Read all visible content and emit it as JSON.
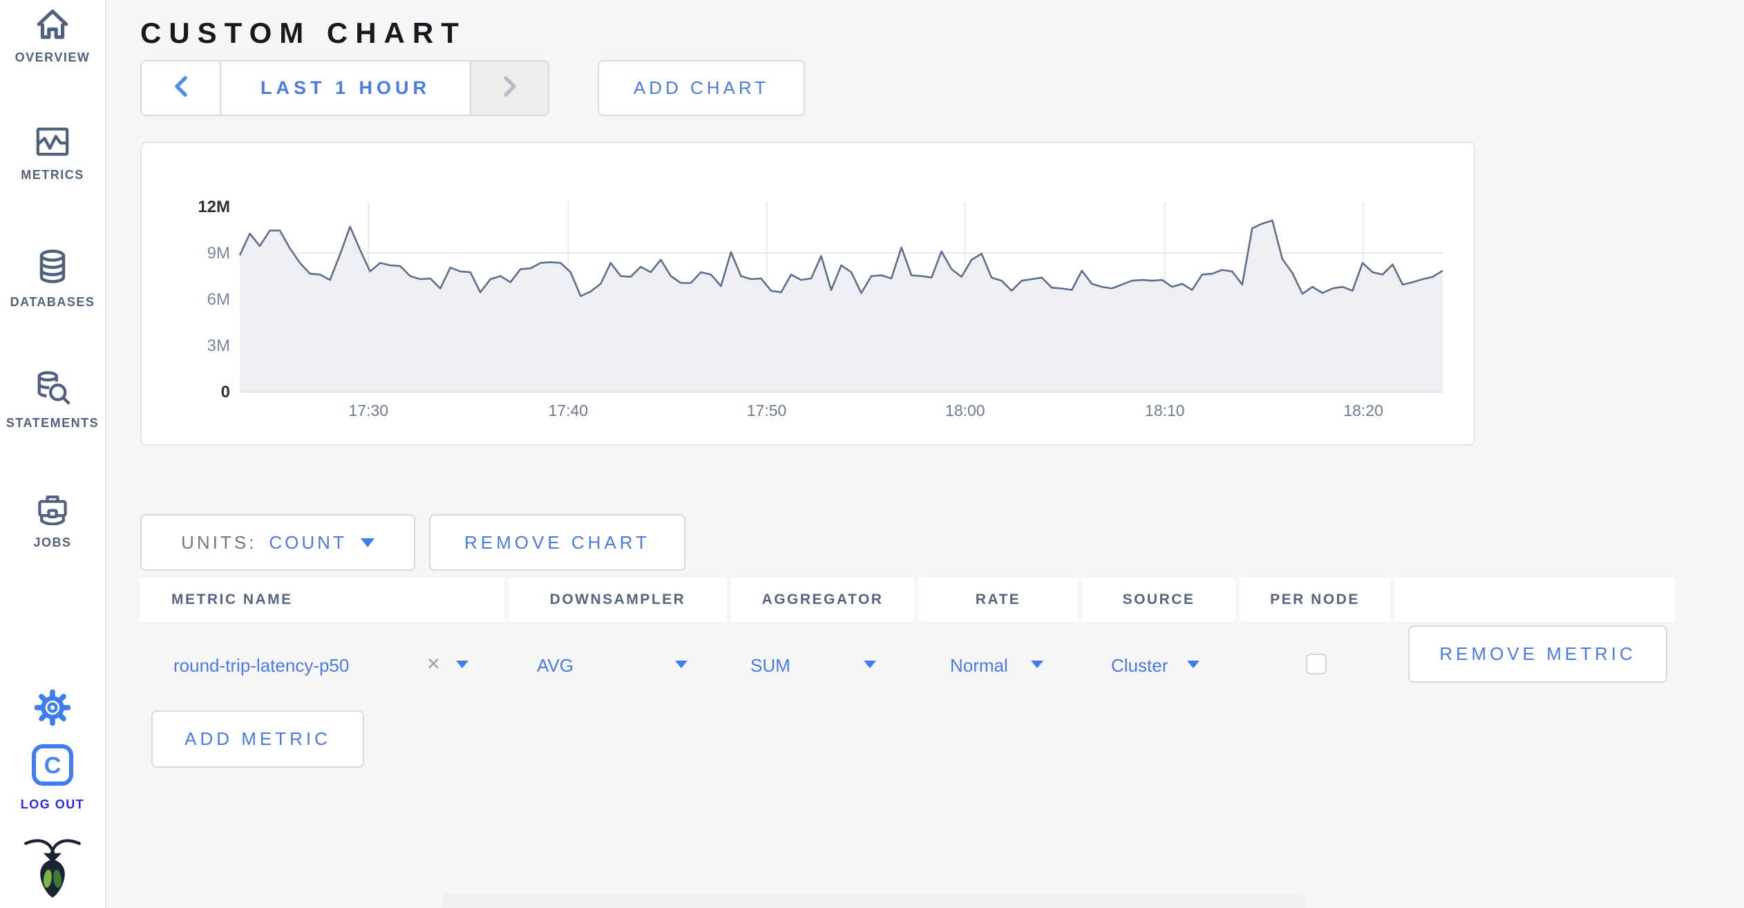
{
  "colors": {
    "link_blue": "#4a7ae2",
    "icon_blue": "#3d7df0",
    "logout_blue": "#2d2af0",
    "sidebar_slate": "#51607c",
    "chart_line": "#5f6e8c",
    "chart_fill": "#edeff4",
    "grid": "#e8e9ed",
    "axis_text": "#7c8699",
    "axis_text_emphasis": "#2b313c"
  },
  "sidebar": {
    "items": [
      {
        "id": "overview",
        "label": "OVERVIEW",
        "icon": "home-icon"
      },
      {
        "id": "metrics",
        "label": "METRICS",
        "icon": "metrics-icon"
      },
      {
        "id": "databases",
        "label": "DATABASES",
        "icon": "database-icon"
      },
      {
        "id": "statements",
        "label": "STATEMENTS",
        "icon": "statements-icon"
      },
      {
        "id": "jobs",
        "label": "JOBS",
        "icon": "briefcase-icon"
      }
    ],
    "settings_icon": "gear-icon",
    "logout": {
      "label": "LOG OUT",
      "icon": "cockroach-c-icon"
    },
    "brand_icon": "cockroach-logo-icon"
  },
  "header": {
    "title": "CUSTOM CHART"
  },
  "time_selector": {
    "prev_icon": "chevron-left-icon",
    "label": "LAST 1 HOUR",
    "next_icon": "chevron-right-icon"
  },
  "add_chart_label": "ADD CHART",
  "chart_data": {
    "type": "area",
    "title": "",
    "ylabel": "count",
    "ylim": [
      0,
      12000000
    ],
    "grid": true,
    "legend": "none",
    "y_ticks": [
      {
        "value_millions": 0,
        "label": "0",
        "emphasis": true
      },
      {
        "value_millions": 3,
        "label": "3M",
        "emphasis": false
      },
      {
        "value_millions": 6,
        "label": "6M",
        "emphasis": false
      },
      {
        "value_millions": 9,
        "label": "9M",
        "emphasis": false
      },
      {
        "value_millions": 12,
        "label": "12M",
        "emphasis": true
      }
    ],
    "x_ticks": [
      {
        "f": 0.107,
        "label": "17:30"
      },
      {
        "f": 0.273,
        "label": "17:40"
      },
      {
        "f": 0.438,
        "label": "17:50"
      },
      {
        "f": 0.603,
        "label": "18:00"
      },
      {
        "f": 0.769,
        "label": "18:10"
      },
      {
        "f": 0.934,
        "label": "18:20"
      }
    ],
    "series": [
      {
        "name": "round-trip-latency-p50",
        "values_millions": [
          8.85,
          10.25,
          9.45,
          10.45,
          10.45,
          9.3,
          8.35,
          7.65,
          7.6,
          7.25,
          8.9,
          10.7,
          9.2,
          7.8,
          8.35,
          8.2,
          8.15,
          7.5,
          7.3,
          7.35,
          6.7,
          8.05,
          7.8,
          7.75,
          6.45,
          7.3,
          7.5,
          7.1,
          7.95,
          8.0,
          8.35,
          8.4,
          8.35,
          7.75,
          6.2,
          6.5,
          7.0,
          8.35,
          7.5,
          7.45,
          8.1,
          7.75,
          8.55,
          7.5,
          7.05,
          7.05,
          7.75,
          7.6,
          6.85,
          9.05,
          7.5,
          7.3,
          7.35,
          6.55,
          6.45,
          7.6,
          7.25,
          7.35,
          8.8,
          6.6,
          8.2,
          7.75,
          6.4,
          7.5,
          7.55,
          7.35,
          9.35,
          7.55,
          7.5,
          7.4,
          9.1,
          7.95,
          7.45,
          8.55,
          8.95,
          7.4,
          7.2,
          6.55,
          7.2,
          7.3,
          7.4,
          6.75,
          6.7,
          6.6,
          7.85,
          7.0,
          6.8,
          6.7,
          6.95,
          7.2,
          7.25,
          7.2,
          7.25,
          6.8,
          7.0,
          6.6,
          7.6,
          7.65,
          7.9,
          7.8,
          6.95,
          10.6,
          10.9,
          11.1,
          8.6,
          7.7,
          6.35,
          6.8,
          6.4,
          6.7,
          6.8,
          6.55,
          8.35,
          7.75,
          7.6,
          8.25,
          6.95,
          7.1,
          7.3,
          7.45,
          7.85
        ]
      }
    ]
  },
  "units_control": {
    "label": "UNITS:",
    "value": "COUNT",
    "caret_icon": "dropdown-caret-icon"
  },
  "remove_chart_label": "REMOVE CHART",
  "metrics_table": {
    "columns": [
      "METRIC NAME",
      "DOWNSAMPLER",
      "AGGREGATOR",
      "RATE",
      "SOURCE",
      "PER NODE",
      ""
    ],
    "rows": [
      {
        "metric_name": "round-trip-latency-p50",
        "clear_icon": "close-icon",
        "downsampler": "AVG",
        "aggregator": "SUM",
        "rate": "Normal",
        "source": "Cluster",
        "per_node_checked": false,
        "remove_label": "REMOVE METRIC"
      }
    ],
    "add_metric_label": "ADD METRIC"
  }
}
